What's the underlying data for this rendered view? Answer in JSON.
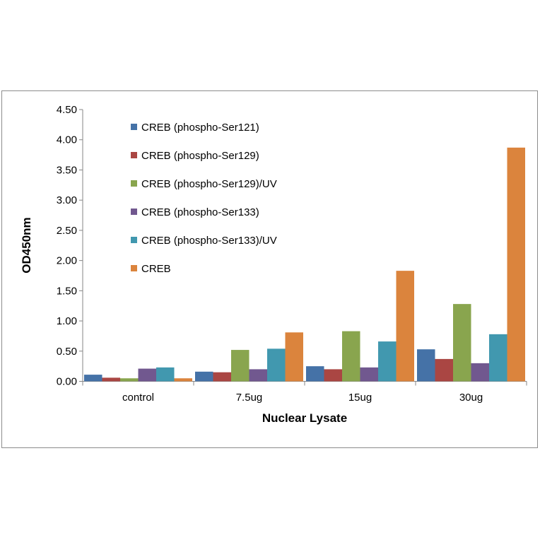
{
  "chart_data": {
    "type": "bar",
    "title": "",
    "xlabel": "Nuclear Lysate",
    "ylabel": "OD450nm",
    "ylim": [
      0,
      4.5
    ],
    "yticks": [
      "0.00",
      "0.50",
      "1.00",
      "1.50",
      "2.00",
      "2.50",
      "3.00",
      "3.50",
      "4.00",
      "4.50"
    ],
    "categories": [
      "control",
      "7.5ug",
      "15ug",
      "30ug"
    ],
    "legend_position": "top-left",
    "grid": false,
    "series": [
      {
        "name": "CREB (phospho-Ser121)",
        "color": "#4572a7",
        "values": [
          0.11,
          0.16,
          0.25,
          0.53
        ]
      },
      {
        "name": "CREB (phospho-Ser129)",
        "color": "#aa4643",
        "values": [
          0.06,
          0.15,
          0.2,
          0.37
        ]
      },
      {
        "name": "CREB (phospho-Ser129)/UV",
        "color": "#89a54e",
        "values": [
          0.05,
          0.52,
          0.83,
          1.28
        ]
      },
      {
        "name": "CREB (phospho-Ser133)",
        "color": "#71588f",
        "values": [
          0.21,
          0.2,
          0.23,
          0.3
        ]
      },
      {
        "name": "CREB (phospho-Ser133)/UV",
        "color": "#4198af",
        "values": [
          0.23,
          0.54,
          0.66,
          0.78
        ]
      },
      {
        "name": "CREB",
        "color": "#db843d",
        "values": [
          0.05,
          0.81,
          1.83,
          3.87
        ]
      }
    ]
  }
}
